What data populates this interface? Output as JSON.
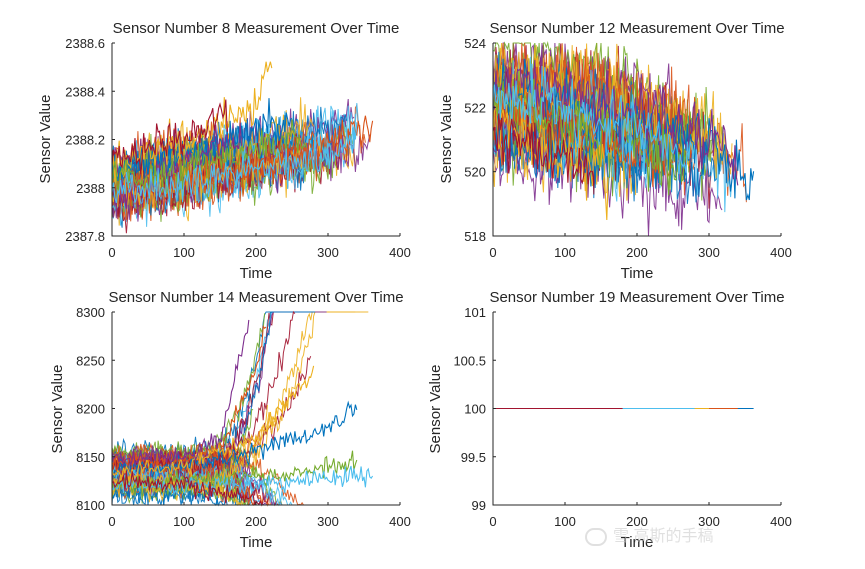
{
  "palette": [
    "#0072BD",
    "#D95319",
    "#EDB120",
    "#7E2F8E",
    "#77AC30",
    "#4DBEEE",
    "#A2142F"
  ],
  "watermark": {
    "icon": "wechat-icon",
    "text": "雪 高斯的手稿"
  },
  "chart_data": [
    {
      "type": "line",
      "title": "Sensor Number 8 Measurement  Over Time",
      "xlabel": "Time",
      "ylabel": "Sensor Value",
      "xlim": [
        0,
        400
      ],
      "ylim": [
        2387.8,
        2388.6
      ],
      "xticks": [
        0,
        100,
        200,
        300,
        400
      ],
      "yticks": [
        2387.8,
        2388,
        2388.2,
        2388.4,
        2388.6
      ],
      "ytick_labels": [
        "2387.8",
        "2388",
        "2388.2",
        "2388.4",
        "2388.6"
      ],
      "grid": false,
      "series_count": 100,
      "series": [
        {
          "x": [
            0,
            100,
            200,
            250
          ],
          "values": [
            2388.06,
            2388.14,
            2388.24,
            2388.3
          ]
        },
        {
          "x": [
            0,
            100,
            200,
            300,
            362
          ],
          "values": [
            2388.0,
            2388.04,
            2388.1,
            2388.18,
            2388.26
          ]
        },
        {
          "x": [
            0,
            100,
            200,
            222
          ],
          "values": [
            2388.1,
            2388.2,
            2388.32,
            2388.55
          ]
        },
        {
          "x": [
            0,
            100,
            180
          ],
          "values": [
            2387.96,
            2388.1,
            2388.22
          ]
        },
        {
          "x": [
            0,
            100,
            200,
            270
          ],
          "values": [
            2388.02,
            2388.08,
            2388.16,
            2388.22
          ]
        },
        {
          "x": [
            0,
            100,
            200,
            300,
            340
          ],
          "values": [
            2387.98,
            2388.02,
            2388.08,
            2388.14,
            2388.2
          ]
        },
        {
          "x": [
            0,
            100,
            160
          ],
          "values": [
            2388.12,
            2388.22,
            2388.3
          ]
        }
      ]
    },
    {
      "type": "line",
      "title": "Sensor Number 12 Measurement  Over Time",
      "xlabel": "Time",
      "ylabel": "Sensor Value",
      "xlim": [
        0,
        400
      ],
      "ylim": [
        518,
        524
      ],
      "xticks": [
        0,
        100,
        200,
        300,
        400
      ],
      "yticks": [
        518,
        520,
        522,
        524
      ],
      "ytick_labels": [
        "518",
        "520",
        "522",
        "524"
      ],
      "grid": false,
      "series_count": 100,
      "series": [
        {
          "x": [
            0,
            100,
            200,
            300,
            362
          ],
          "values": [
            522.5,
            522.2,
            521.6,
            520.9,
            519.5
          ]
        },
        {
          "x": [
            0,
            100,
            200,
            250
          ],
          "values": [
            521.8,
            521.2,
            520.6,
            520.0
          ]
        },
        {
          "x": [
            0,
            100,
            160
          ],
          "values": [
            521.4,
            520.6,
            519.6
          ]
        },
        {
          "x": [
            0,
            100,
            200,
            300,
            340
          ],
          "values": [
            522.8,
            522.4,
            521.8,
            521.0,
            520.2
          ]
        },
        {
          "x": [
            0,
            100,
            200,
            270
          ],
          "values": [
            522.0,
            521.6,
            520.8,
            520.1
          ]
        },
        {
          "x": [
            0,
            100,
            200,
            280
          ],
          "values": [
            522.3,
            521.9,
            521.2,
            520.4
          ]
        },
        {
          "x": [
            0,
            100,
            140
          ],
          "values": [
            521.2,
            520.4,
            519.8
          ]
        }
      ]
    },
    {
      "type": "line",
      "title": "Sensor Number 14 Measurement  Over Time",
      "xlabel": "Time",
      "ylabel": "Sensor Value",
      "xlim": [
        0,
        400
      ],
      "ylim": [
        8100,
        8300
      ],
      "xticks": [
        0,
        100,
        200,
        300,
        400
      ],
      "yticks": [
        8100,
        8150,
        8200,
        8250,
        8300
      ],
      "ytick_labels": [
        "8100",
        "8150",
        "8200",
        "8250",
        "8300"
      ],
      "grid": false,
      "series_count": 100,
      "series": [
        {
          "x": [
            0,
            100,
            200,
            300,
            340
          ],
          "values": [
            8138,
            8140,
            8155,
            8180,
            8202
          ]
        },
        {
          "x": [
            0,
            100,
            150,
            200,
            215
          ],
          "values": [
            8145,
            8148,
            8160,
            8240,
            8295
          ]
        },
        {
          "x": [
            0,
            100,
            200,
            280
          ],
          "values": [
            8135,
            8140,
            8170,
            8238
          ]
        },
        {
          "x": [
            0,
            100,
            150,
            190
          ],
          "values": [
            8148,
            8150,
            8168,
            8290
          ]
        },
        {
          "x": [
            0,
            100,
            200,
            300,
            340
          ],
          "values": [
            8122,
            8125,
            8130,
            8138,
            8145
          ]
        },
        {
          "x": [
            0,
            100,
            200,
            300,
            362
          ],
          "values": [
            8118,
            8120,
            8122,
            8128,
            8130
          ]
        },
        {
          "x": [
            0,
            100,
            160,
            210
          ],
          "values": [
            8126,
            8120,
            8110,
            8102
          ]
        }
      ]
    },
    {
      "type": "line",
      "title": "Sensor Number 19 Measurement  Over Time",
      "xlabel": "Time",
      "ylabel": "Sensor Value",
      "xlim": [
        0,
        400
      ],
      "ylim": [
        99,
        101
      ],
      "xticks": [
        0,
        100,
        200,
        300,
        400
      ],
      "yticks": [
        99,
        99.5,
        100,
        100.5,
        101
      ],
      "ytick_labels": [
        "99",
        "99.5",
        "100",
        "100.5",
        "101"
      ],
      "grid": false,
      "series_count": 100,
      "series": [
        {
          "x": [
            0,
            362
          ],
          "values": [
            100,
            100
          ]
        },
        {
          "x": [
            0,
            340
          ],
          "values": [
            100,
            100
          ]
        },
        {
          "x": [
            0,
            300
          ],
          "values": [
            100,
            100
          ]
        },
        {
          "x": [
            0,
            250
          ],
          "values": [
            100,
            100
          ]
        },
        {
          "x": [
            0,
            200
          ],
          "values": [
            100,
            100
          ]
        },
        {
          "x": [
            0,
            280
          ],
          "values": [
            100,
            100
          ]
        },
        {
          "x": [
            0,
            180
          ],
          "values": [
            100,
            100
          ]
        }
      ]
    }
  ]
}
